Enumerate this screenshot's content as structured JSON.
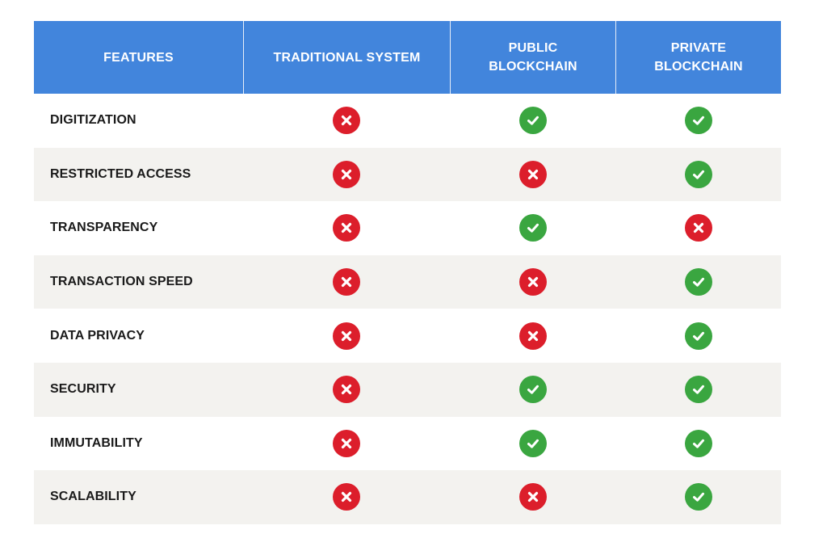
{
  "header": {
    "features": "FEATURES",
    "traditional": "TRADITIONAL SYSTEM",
    "public": "PUBLIC\nBLOCKCHAIN",
    "private": "PRIVATE\nBLOCKCHAIN"
  },
  "rows": [
    {
      "feature": "DIGITIZATION",
      "traditional": "no",
      "public": "yes",
      "private": "yes"
    },
    {
      "feature": "RESTRICTED ACCESS",
      "traditional": "no",
      "public": "no",
      "private": "yes"
    },
    {
      "feature": "TRANSPARENCY",
      "traditional": "no",
      "public": "yes",
      "private": "no"
    },
    {
      "feature": "TRANSACTION SPEED",
      "traditional": "no",
      "public": "no",
      "private": "yes"
    },
    {
      "feature": "DATA PRIVACY",
      "traditional": "no",
      "public": "no",
      "private": "yes"
    },
    {
      "feature": "SECURITY",
      "traditional": "no",
      "public": "yes",
      "private": "yes"
    },
    {
      "feature": "IMMUTABILITY",
      "traditional": "no",
      "public": "yes",
      "private": "yes"
    },
    {
      "feature": "SCALABILITY",
      "traditional": "no",
      "public": "no",
      "private": "yes"
    }
  ],
  "colors": {
    "header_bg": "#4285dc",
    "alt_row_bg": "#f3f2ef",
    "check_green": "#3aa640",
    "cross_red": "#dc1e2b"
  },
  "icons": {
    "yes": "check-circle-icon",
    "no": "cross-circle-icon"
  }
}
